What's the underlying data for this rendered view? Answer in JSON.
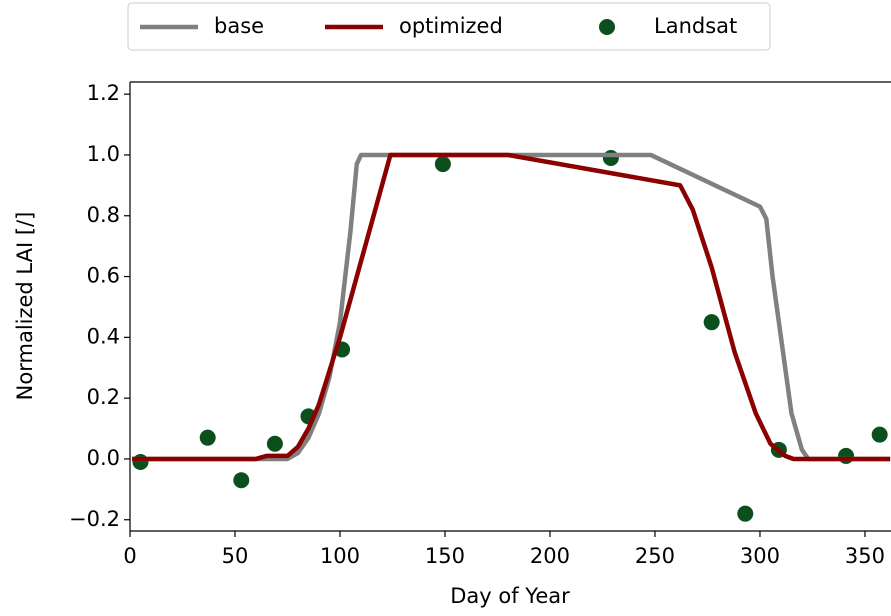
{
  "chart_data": {
    "type": "line",
    "xlabel": "Day of Year",
    "ylabel": "Normalized LAI [/]",
    "xlim": [
      0,
      362.4
    ],
    "ylim": [
      -0.237,
      1.24
    ],
    "xticks": [
      0,
      50,
      100,
      150,
      200,
      250,
      300,
      350
    ],
    "yticks": [
      {
        "value": -0.2,
        "label": "−0.2"
      },
      {
        "value": 0,
        "label": "0.0"
      },
      0.2,
      0.4,
      0.6,
      0.8,
      {
        "value": 1,
        "label": "1.0"
      },
      1.2
    ],
    "series": [
      {
        "name": "base",
        "type": "line",
        "color": "#808080",
        "x": [
          1,
          75,
          80,
          85,
          90,
          95,
          100,
          105,
          108,
          110,
          248,
          300,
          303,
          306,
          310,
          315,
          320,
          323,
          362
        ],
        "values": [
          0,
          0,
          0.02,
          0.07,
          0.15,
          0.27,
          0.45,
          0.75,
          0.97,
          1,
          1,
          0.83,
          0.79,
          0.6,
          0.4,
          0.15,
          0.03,
          0,
          0
        ]
      },
      {
        "name": "optimized",
        "type": "line",
        "color": "#8b0000",
        "x": [
          1,
          60,
          65,
          75,
          80,
          85,
          90,
          100,
          110,
          124,
          180,
          262,
          268,
          277,
          288,
          298,
          305,
          312,
          316,
          362
        ],
        "values": [
          0,
          0,
          0.01,
          0.01,
          0.04,
          0.1,
          0.18,
          0.4,
          0.65,
          1,
          1,
          0.9,
          0.82,
          0.63,
          0.35,
          0.15,
          0.05,
          0.01,
          0,
          0
        ]
      },
      {
        "name": "Landsat",
        "type": "scatter",
        "color": "#0b4f1c",
        "x": [
          5,
          37,
          53,
          69,
          85,
          101,
          149,
          229,
          277,
          293,
          309,
          341,
          357
        ],
        "values": [
          -0.01,
          0.07,
          -0.07,
          0.05,
          0.14,
          0.36,
          0.97,
          0.99,
          0.45,
          -0.18,
          0.03,
          0.01,
          0.08
        ]
      }
    ]
  }
}
